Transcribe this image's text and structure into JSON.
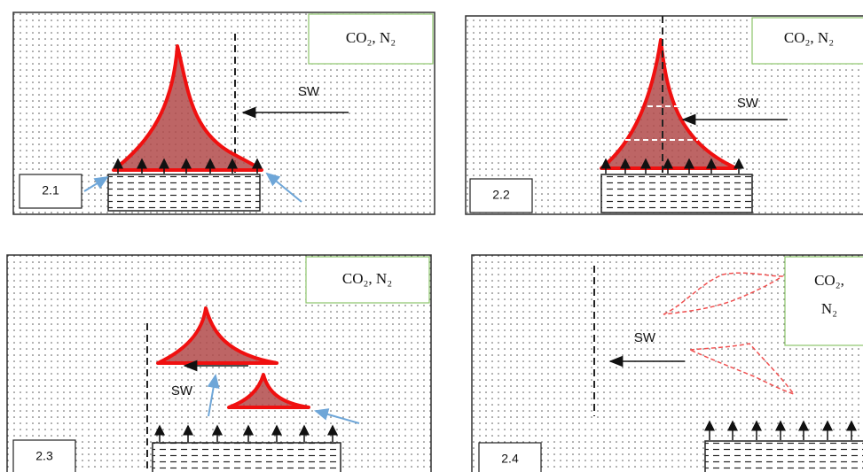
{
  "panels": [
    {
      "label": "2.1",
      "gas": [
        "CO₂, N₂"
      ],
      "flow": "SW"
    },
    {
      "label": "2.2",
      "gas": [
        "CO₂, N₂"
      ],
      "flow": "SW"
    },
    {
      "label": "2.3",
      "gas": [
        "CO₂, N₂"
      ],
      "flow": "SW"
    },
    {
      "label": "2.4",
      "gas": [
        "CO₂,",
        "N₂"
      ],
      "flow": "SW"
    }
  ]
}
